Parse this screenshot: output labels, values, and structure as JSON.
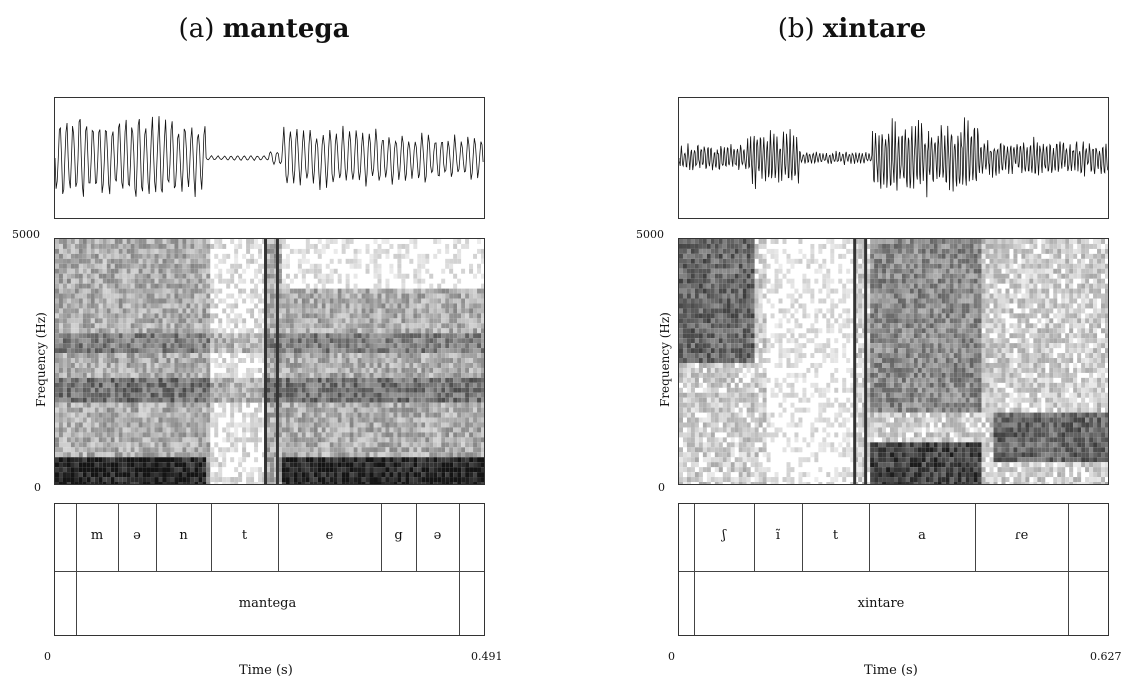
{
  "panels": [
    {
      "title_prefix": "(a)",
      "title_word": "mantega",
      "freq_max": "5000",
      "freq_min": "0",
      "ylabel": "Frequency (Hz)",
      "time_start": "0",
      "time_end": "0.491",
      "xlabel": "Time (s)",
      "segments": [
        "m",
        "ə",
        "n",
        "t",
        "e",
        "g",
        "ə"
      ],
      "word": "mantega"
    },
    {
      "title_prefix": "(b)",
      "title_word": "xintare",
      "freq_max": "5000",
      "freq_min": "0",
      "ylabel": "Frequency (Hz)",
      "time_start": "0",
      "time_end": "0.627",
      "xlabel": "Time (s)",
      "segments": [
        "ʃ",
        "ĩ",
        "t",
        "a",
        "ɾe"
      ],
      "word": "xintare"
    }
  ]
}
